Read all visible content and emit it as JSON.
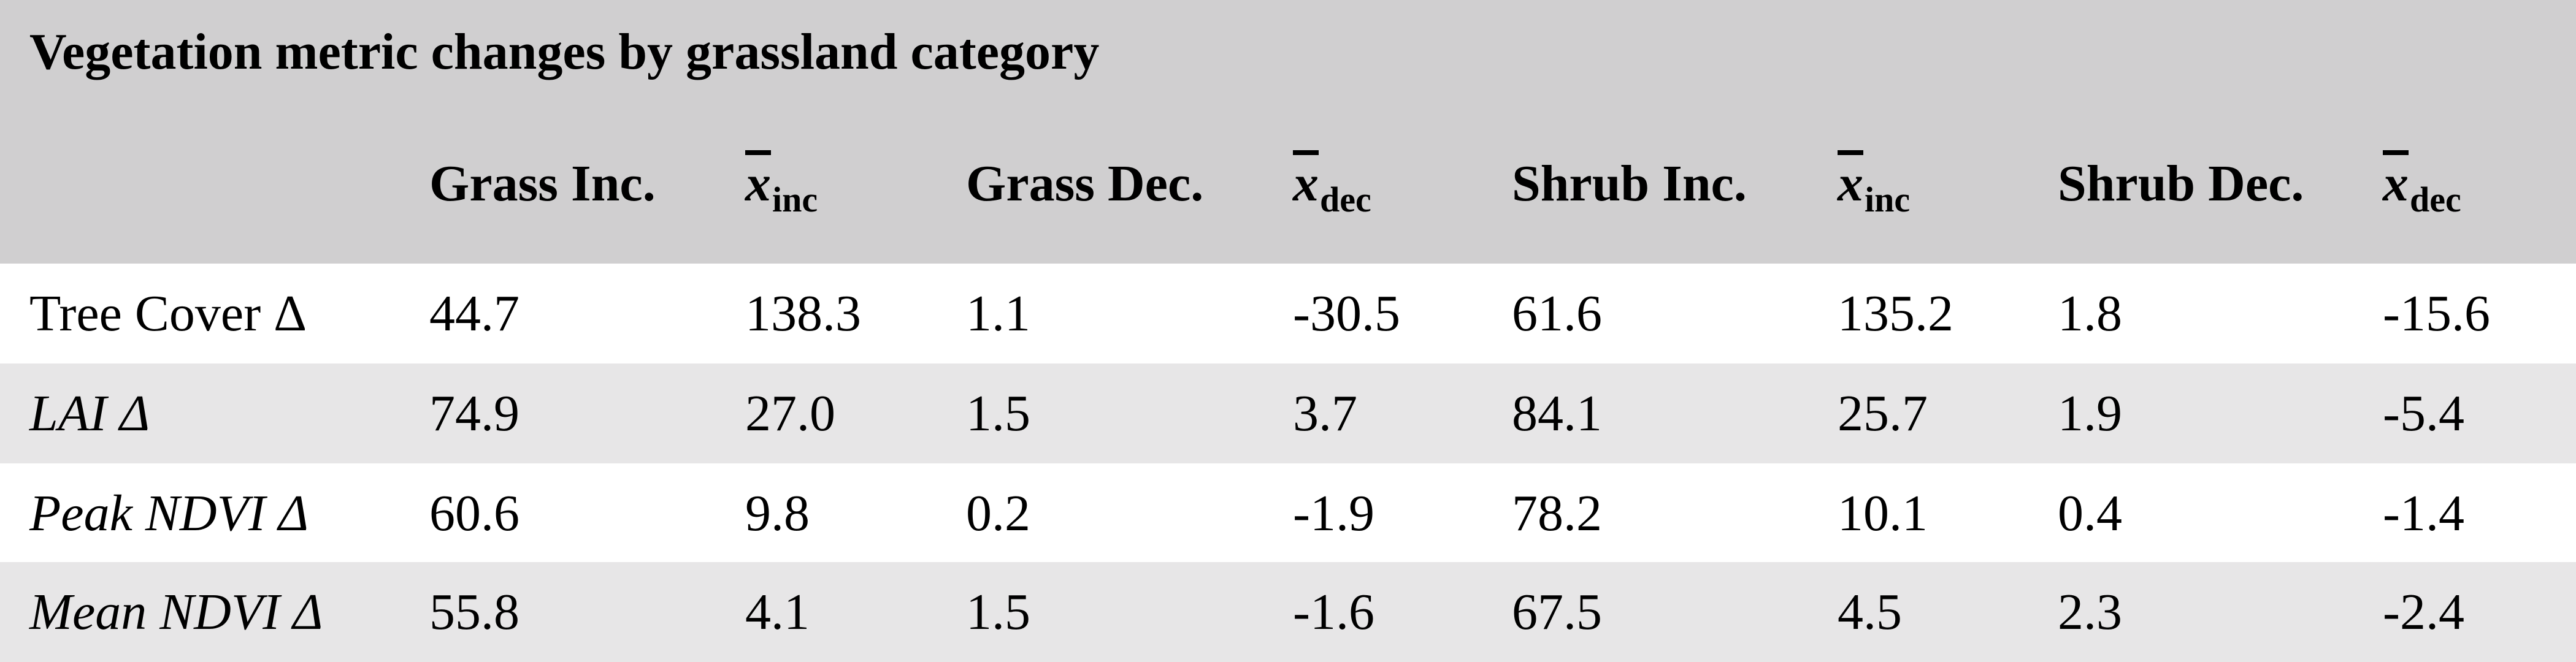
{
  "table": {
    "title": "Vegetation metric changes by grassland category",
    "columns": [
      {
        "label": "Grass Inc.",
        "sub": ""
      },
      {
        "label": "x",
        "sub": "inc"
      },
      {
        "label": "Grass Dec.",
        "sub": ""
      },
      {
        "label": "x",
        "sub": "dec"
      },
      {
        "label": "Shrub Inc.",
        "sub": ""
      },
      {
        "label": "x",
        "sub": "inc"
      },
      {
        "label": "Shrub Dec.",
        "sub": ""
      },
      {
        "label": "x",
        "sub": "dec"
      }
    ],
    "rows": [
      {
        "label": "Tree Cover Δ",
        "italic": false,
        "cells": [
          "44.7",
          "138.3",
          "1.1",
          "-30.5",
          "61.6",
          "135.2",
          "1.8",
          "-15.6"
        ]
      },
      {
        "label": "LAI Δ",
        "italic": true,
        "cells": [
          "74.9",
          "27.0",
          "1.5",
          "3.7",
          "84.1",
          "25.7",
          "1.9",
          "-5.4"
        ]
      },
      {
        "label": "Peak NDVI Δ",
        "italic": true,
        "cells": [
          "60.6",
          "9.8",
          "0.2",
          "-1.9",
          "78.2",
          "10.1",
          "0.4",
          "-1.4"
        ]
      },
      {
        "label": "Mean NDVI Δ",
        "italic": true,
        "cells": [
          "55.8",
          "4.1",
          "1.5",
          "-1.6",
          "67.5",
          "4.5",
          "2.3",
          "-2.4"
        ]
      }
    ]
  },
  "colors": {
    "header_bg": "#d0cfd0",
    "row_alt_bg": "#e7e6e7",
    "row_bg": "#ffffff"
  }
}
